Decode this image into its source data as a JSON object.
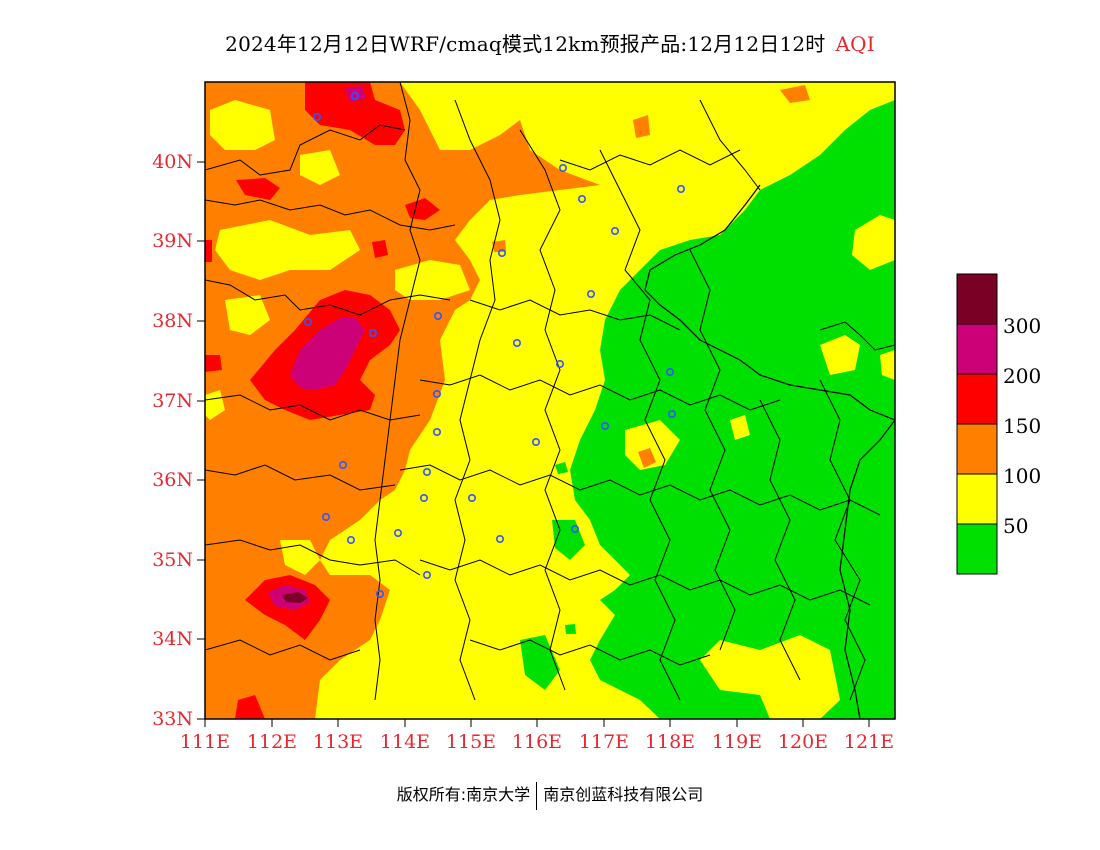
{
  "title": {
    "main": "2024年12月12日WRF/cmaq模式12km预报产品:12月12日12时",
    "variable": "AQI"
  },
  "axes": {
    "lat_labels": [
      "40N",
      "39N",
      "38N",
      "37N",
      "36N",
      "35N",
      "34N",
      "33N"
    ],
    "lon_labels": [
      "111E",
      "112E",
      "113E",
      "114E",
      "115E",
      "116E",
      "117E",
      "118E",
      "119E",
      "120E",
      "121E"
    ],
    "lat_range": [
      33,
      41
    ],
    "lon_range": [
      111,
      121.4
    ]
  },
  "legend": {
    "labels": [
      "300",
      "200",
      "150",
      "100",
      "50"
    ],
    "colors": [
      "#7a0026",
      "#cc0077",
      "#ff0000",
      "#ff8000",
      "#ffff00",
      "#00e000"
    ],
    "ranges": [
      "300+",
      "200-300",
      "150-200",
      "100-150",
      "50-100",
      "0-50"
    ]
  },
  "colors": {
    "good": "#00e000",
    "moderate": "#ffff00",
    "sensitive": "#ff8000",
    "unhealthy": "#ff0000",
    "very_unhealthy": "#cc0077",
    "hazardous": "#7a0026",
    "label": "#e8262e",
    "station": "#3355ff"
  },
  "copyright": {
    "left": "版权所有:南京大学",
    "right": "南京创蓝科技有限公司"
  }
}
